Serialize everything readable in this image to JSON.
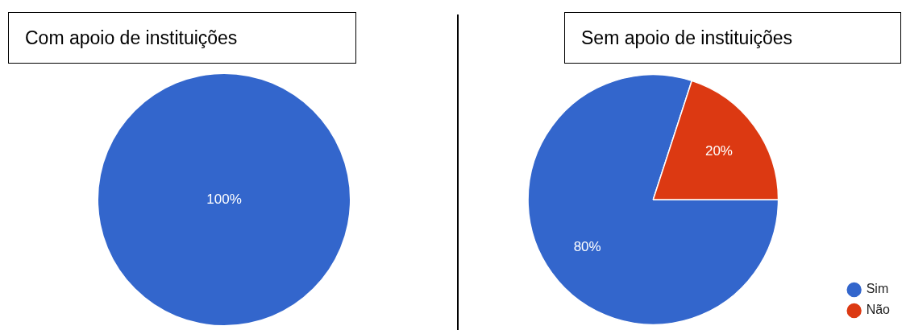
{
  "chart_data": [
    {
      "type": "pie",
      "title": "Com apoio de instituições",
      "categories": [
        null
      ],
      "values": [
        100
      ],
      "colors": [
        "#3366cc"
      ],
      "value_labels": [
        "100%"
      ],
      "legend": false
    },
    {
      "type": "pie",
      "title": "Sem apoio de instituições",
      "categories": [
        "Sim",
        "Não"
      ],
      "values": [
        80,
        20
      ],
      "colors": [
        "#3366cc",
        "#dc3912"
      ],
      "value_labels": [
        "80%",
        "20%"
      ],
      "legend": "bottom right"
    }
  ]
}
